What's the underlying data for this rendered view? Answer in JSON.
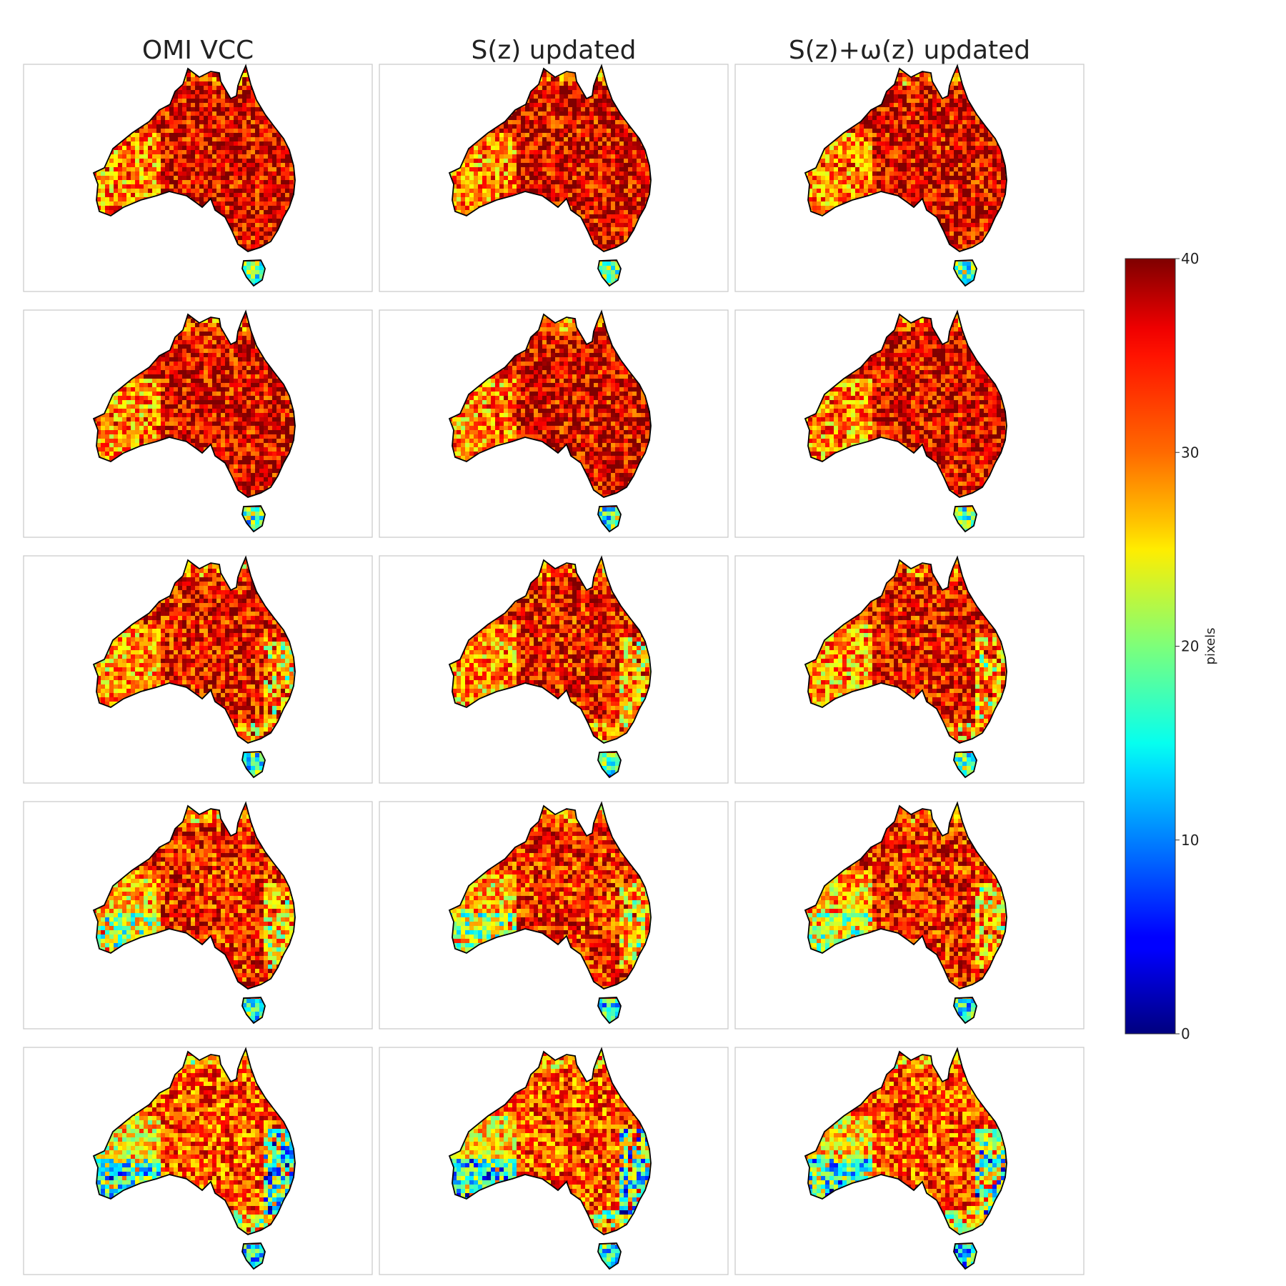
{
  "chart_data": {
    "type": "heatmap",
    "layout": "5 rows x 3 columns small-multiple map panels",
    "columns": [
      "OMI VCC",
      "S(z) updated",
      "S(z)+ω(z) updated"
    ],
    "rows": 5,
    "region": "Australia",
    "colormap": "jet",
    "colorbar": {
      "label": "pixels",
      "min": 0,
      "max": 40,
      "ticks": [
        0,
        10,
        20,
        30,
        40
      ]
    },
    "grid": false,
    "panels": [
      {
        "row": 1,
        "column": "OMI VCC",
        "typical_value": 36,
        "low_areas": []
      },
      {
        "row": 1,
        "column": "S(z) updated",
        "typical_value": 36,
        "low_areas": []
      },
      {
        "row": 1,
        "column": "S(z)+ω(z) updated",
        "typical_value": 36,
        "low_areas": []
      },
      {
        "row": 2,
        "column": "OMI VCC",
        "typical_value": 36,
        "low_areas": []
      },
      {
        "row": 2,
        "column": "S(z) updated",
        "typical_value": 36,
        "low_areas": []
      },
      {
        "row": 2,
        "column": "S(z)+ω(z) updated",
        "typical_value": 36,
        "low_areas": []
      },
      {
        "row": 3,
        "column": "OMI VCC",
        "typical_value": 35,
        "low_areas": [
          "south-east coast",
          "east coast"
        ]
      },
      {
        "row": 3,
        "column": "S(z) updated",
        "typical_value": 35,
        "low_areas": [
          "south-east coast",
          "east coast"
        ]
      },
      {
        "row": 3,
        "column": "S(z)+ω(z) updated",
        "typical_value": 35,
        "low_areas": [
          "south-east coast",
          "east coast"
        ]
      },
      {
        "row": 4,
        "column": "OMI VCC",
        "typical_value": 34,
        "low_areas": [
          "east coast",
          "south-west"
        ]
      },
      {
        "row": 4,
        "column": "S(z) updated",
        "typical_value": 34,
        "low_areas": [
          "east coast",
          "south-west"
        ]
      },
      {
        "row": 4,
        "column": "S(z)+ω(z) updated",
        "typical_value": 34,
        "low_areas": [
          "east coast",
          "south-west"
        ]
      },
      {
        "row": 5,
        "column": "OMI VCC",
        "typical_value": 32,
        "low_areas": [
          "east coast",
          "south-west",
          "south-east"
        ]
      },
      {
        "row": 5,
        "column": "S(z) updated",
        "typical_value": 32,
        "low_areas": [
          "east coast",
          "south-west",
          "south-east"
        ]
      },
      {
        "row": 5,
        "column": "S(z)+ω(z) updated",
        "typical_value": 32,
        "low_areas": [
          "east coast",
          "south-west",
          "south-east"
        ]
      }
    ]
  }
}
